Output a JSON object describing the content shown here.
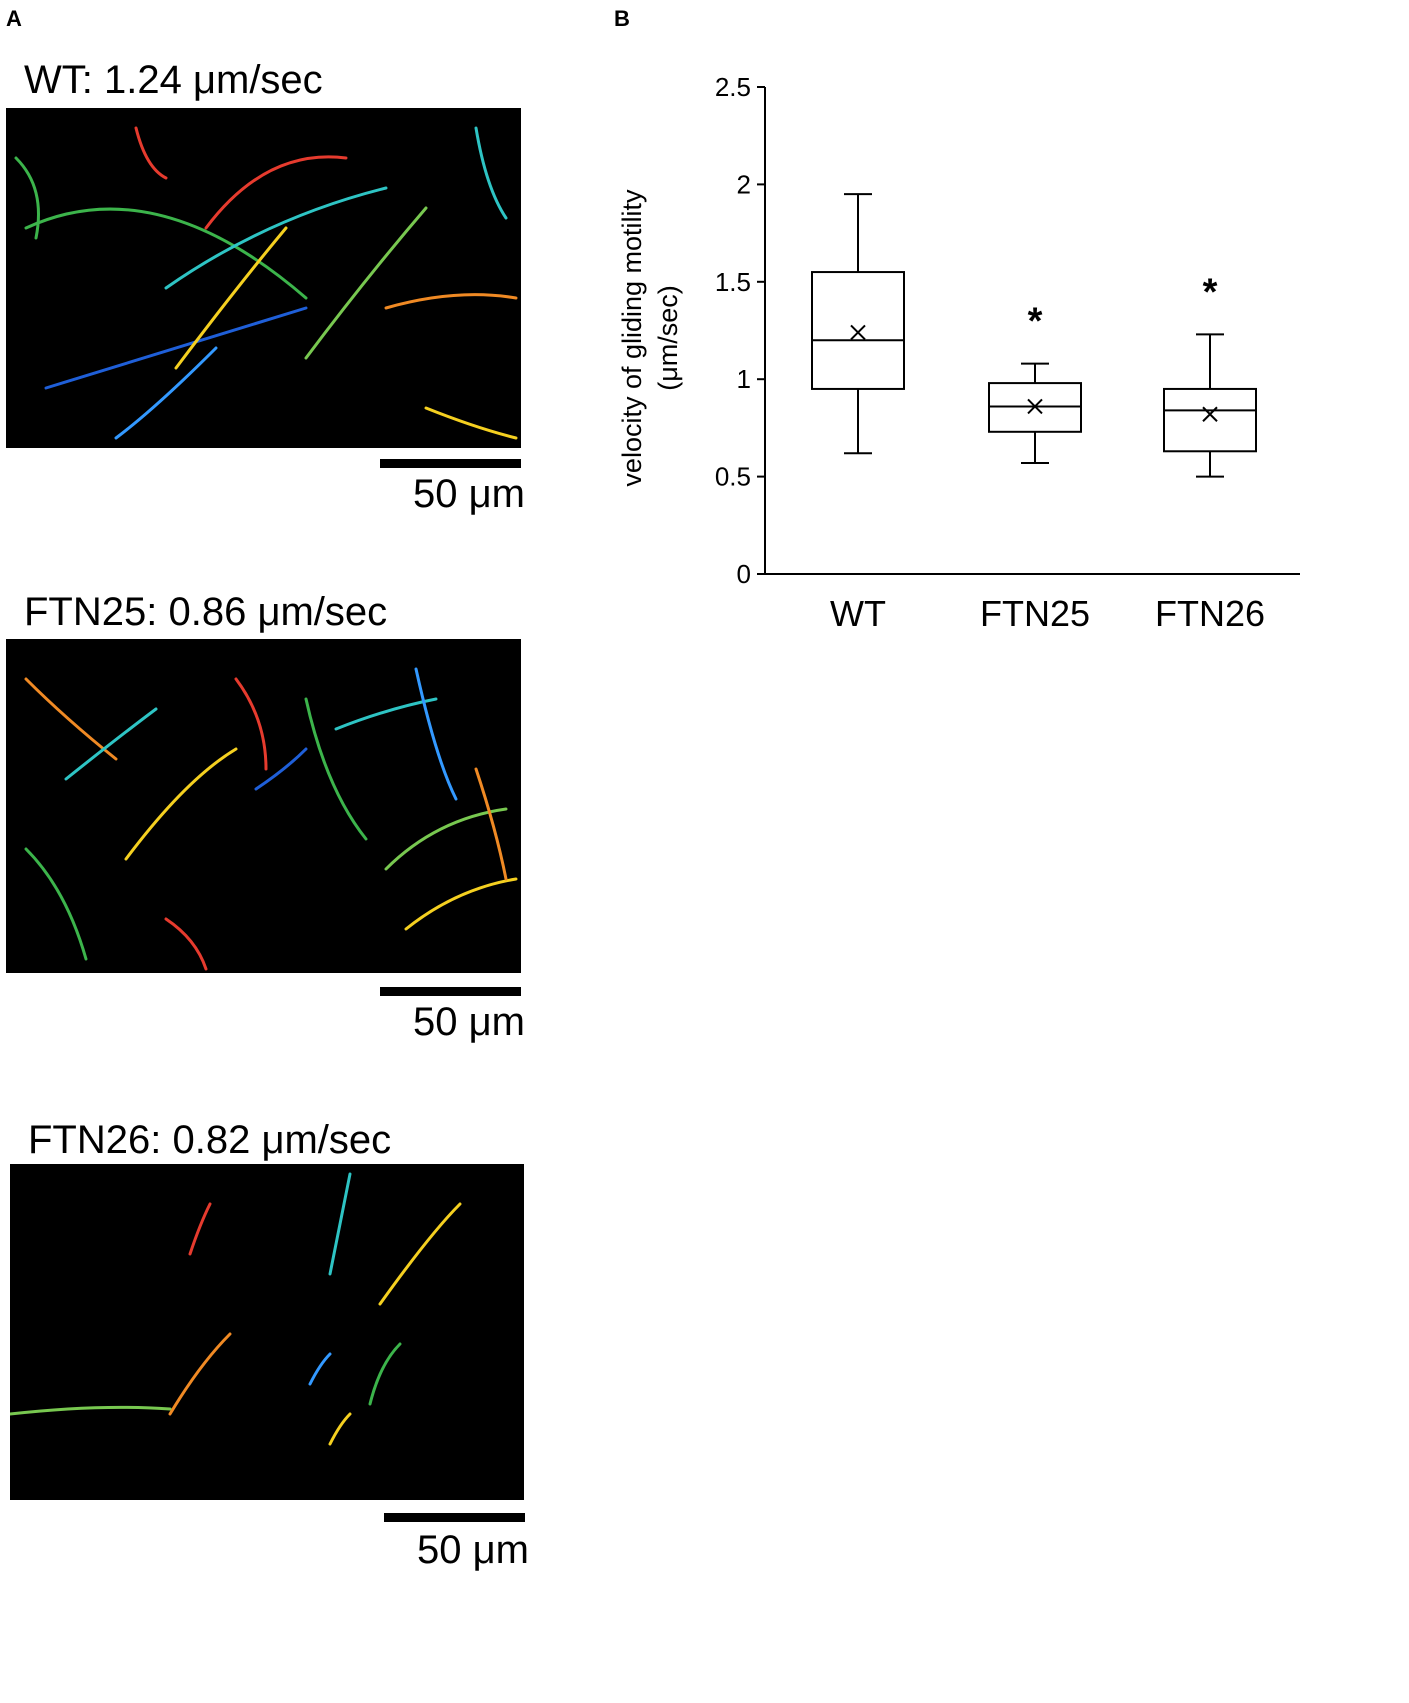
{
  "panel_a": {
    "letter": "A",
    "images": [
      {
        "title": "WT: 1.24 μm/sec",
        "scale_label": "50 μm"
      },
      {
        "title": "FTN25: 0.86 μm/sec",
        "scale_label": "50 μm"
      },
      {
        "title": "FTN26: 0.82 μm/sec",
        "scale_label": "50 μm"
      }
    ]
  },
  "panel_b": {
    "letter": "B"
  },
  "chart_data": {
    "type": "box",
    "title": "",
    "ylabel_line1": "velocity of gliding motility",
    "ylabel_line2": "(μm/sec)",
    "xlabel": "",
    "ylim": [
      0,
      2.5
    ],
    "yticks": [
      0,
      0.5,
      1,
      1.5,
      2,
      2.5
    ],
    "ytick_labels": [
      "0",
      "0.5",
      "1",
      "1.5",
      "2",
      "2.5"
    ],
    "categories": [
      "WT",
      "FTN25",
      "FTN26"
    ],
    "boxes": [
      {
        "category": "WT",
        "min": 0.62,
        "q1": 0.95,
        "median": 1.2,
        "q3": 1.55,
        "max": 1.95,
        "mean": 1.24,
        "significance": ""
      },
      {
        "category": "FTN25",
        "min": 0.57,
        "q1": 0.73,
        "median": 0.86,
        "q3": 0.98,
        "max": 1.08,
        "mean": 0.86,
        "significance": "*"
      },
      {
        "category": "FTN26",
        "min": 0.5,
        "q1": 0.63,
        "median": 0.84,
        "q3": 0.95,
        "max": 1.23,
        "mean": 0.82,
        "significance": "*"
      }
    ],
    "grid": false,
    "legend": "none"
  }
}
